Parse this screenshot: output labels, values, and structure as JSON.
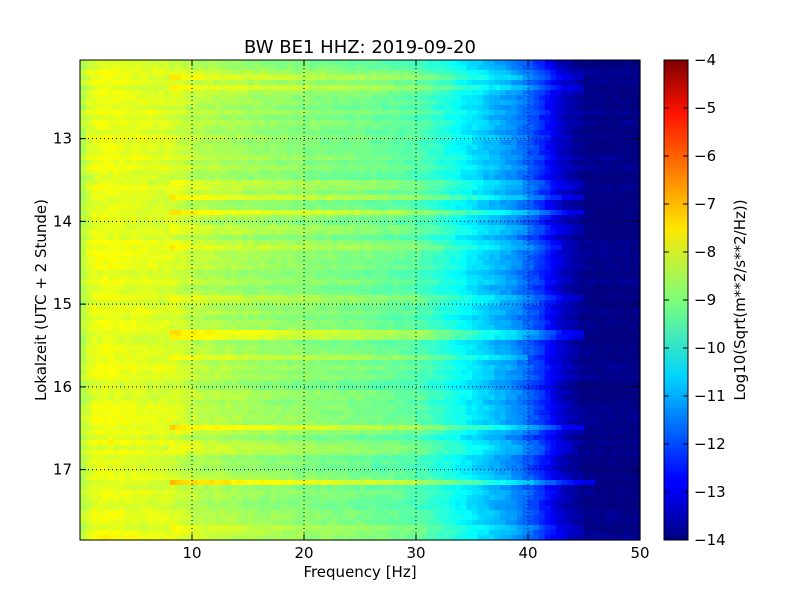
{
  "chart_data": {
    "type": "heatmap",
    "title": "BW BE1 HHZ: 2019-09-20",
    "xlabel": "Frequency [Hz]",
    "ylabel": "Lokalzeit (UTC + 2 Stunde)",
    "colorbar_label": "Log10(Sqrt(m**2/s**2/Hz))",
    "xlim": [
      0,
      50
    ],
    "ylim": [
      17.85,
      12.05
    ],
    "x_ticks": [
      10,
      20,
      30,
      40,
      50
    ],
    "y_ticks": [
      13,
      14,
      15,
      16,
      17
    ],
    "color_range": [
      -14,
      -4
    ],
    "colorbar_ticks": [
      -4,
      -5,
      -6,
      -7,
      -8,
      -9,
      -10,
      -11,
      -12,
      -13,
      -14
    ],
    "colormap": "jet",
    "grid": true,
    "frequency_profile": [
      {
        "freq": 0,
        "log_psd": -8.6
      },
      {
        "freq": 1,
        "log_psd": -8.0
      },
      {
        "freq": 2,
        "log_psd": -7.9
      },
      {
        "freq": 5,
        "log_psd": -8.0
      },
      {
        "freq": 8,
        "log_psd": -8.1
      },
      {
        "freq": 10,
        "log_psd": -8.4
      },
      {
        "freq": 15,
        "log_psd": -8.7
      },
      {
        "freq": 20,
        "log_psd": -8.9
      },
      {
        "freq": 25,
        "log_psd": -9.1
      },
      {
        "freq": 30,
        "log_psd": -9.4
      },
      {
        "freq": 33,
        "log_psd": -10.0
      },
      {
        "freq": 36,
        "log_psd": -10.7
      },
      {
        "freq": 39,
        "log_psd": -11.4
      },
      {
        "freq": 41,
        "log_psd": -12.2
      },
      {
        "freq": 43,
        "log_psd": -13.3
      },
      {
        "freq": 45,
        "log_psd": -13.9
      },
      {
        "freq": 50,
        "log_psd": -14.0
      }
    ],
    "bright_bands": [
      {
        "time": 12.25,
        "strength": 0.6,
        "freq_max": 45
      },
      {
        "time": 12.4,
        "strength": 0.8,
        "freq_max": 45
      },
      {
        "time": 13.55,
        "strength": 0.6,
        "freq_max": 45
      },
      {
        "time": 13.7,
        "strength": 0.7,
        "freq_max": 45
      },
      {
        "time": 13.9,
        "strength": 0.8,
        "freq_max": 45
      },
      {
        "time": 14.1,
        "strength": 0.6,
        "freq_max": 45
      },
      {
        "time": 14.3,
        "strength": 0.5,
        "freq_max": 43
      },
      {
        "time": 14.95,
        "strength": 0.7,
        "freq_max": 45
      },
      {
        "time": 15.35,
        "strength": 0.8,
        "freq_max": 45
      },
      {
        "time": 15.4,
        "strength": 0.7,
        "freq_max": 45
      },
      {
        "time": 15.65,
        "strength": 0.5,
        "freq_max": 40
      },
      {
        "time": 16.1,
        "strength": 0.5,
        "freq_max": 42
      },
      {
        "time": 16.5,
        "strength": 0.8,
        "freq_max": 45
      },
      {
        "time": 16.75,
        "strength": 0.6,
        "freq_max": 44
      },
      {
        "time": 17.15,
        "strength": 1.0,
        "freq_max": 46
      },
      {
        "time": 17.72,
        "strength": 0.7,
        "freq_max": 45
      }
    ]
  }
}
